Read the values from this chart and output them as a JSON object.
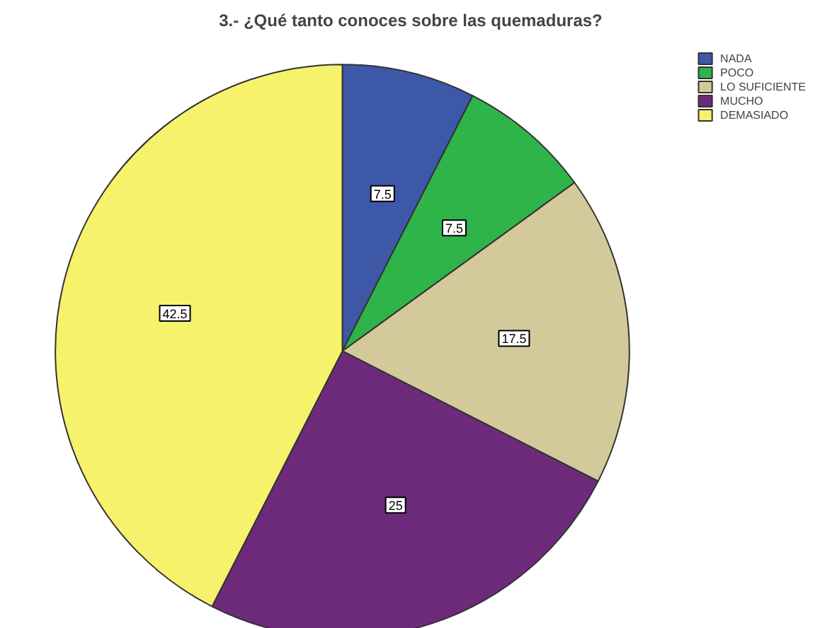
{
  "chart_data": {
    "type": "pie",
    "title": "3.- ¿Qué tanto conoces sobre las quemaduras?",
    "categories": [
      "NADA",
      "POCO",
      "LO SUFICIENTE",
      "MUCHO",
      "DEMASIADO"
    ],
    "values": [
      7.5,
      7.5,
      17.5,
      25,
      42.5
    ],
    "colors": [
      "#3e58a8",
      "#2fb44a",
      "#d4c99a",
      "#6e2a7a",
      "#f7f26c"
    ],
    "data_labels": true,
    "legend": "top right"
  }
}
